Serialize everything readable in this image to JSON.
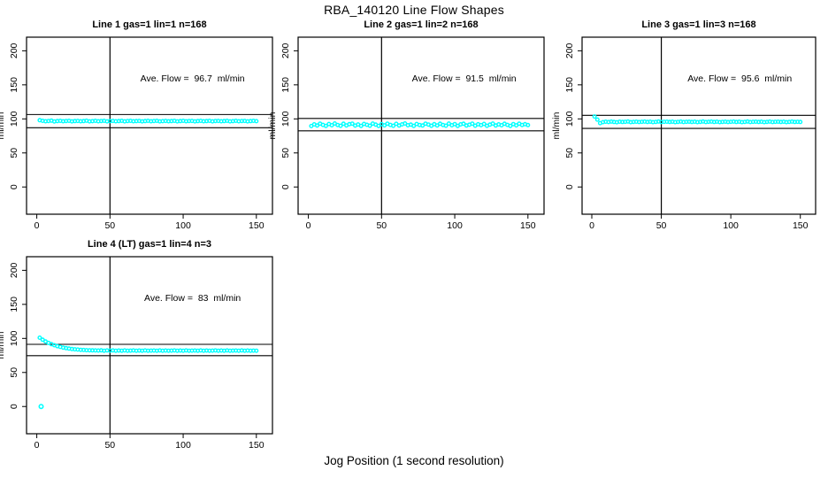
{
  "chart_data": {
    "type": "scatter",
    "title": "RBA_140120  Line Flow Shapes",
    "xlabel": "Jog Position (1 second resolution)",
    "ylabel": "ml/min",
    "xlim": [
      -7,
      161
    ],
    "ylim": [
      -40,
      220
    ],
    "x_ticks": [
      0,
      50,
      100,
      150
    ],
    "y_ticks": [
      0,
      50,
      100,
      150,
      200
    ],
    "grid": false,
    "legend": "none",
    "point_color": "#00FFFF",
    "line_color": "#000000",
    "vline_x": 50,
    "panels": [
      {
        "title": "Line 1 gas=1 lin=1 n=168",
        "n": 168,
        "ave_flow_ml_min": 96.7,
        "ave_label": "Ave. Flow =  96.7  ml/min",
        "ref_lines_y": [
          87.0,
          106.4
        ],
        "series": {
          "x0": 2,
          "dx": 2,
          "y": [
            98.0,
            97.2,
            96.5,
            96.9,
            97.4,
            96.3,
            96.8,
            97.1,
            96.5,
            96.9,
            97.2,
            96.4,
            96.7,
            97.0,
            96.5,
            96.8,
            97.3,
            96.4,
            96.6,
            97.1,
            96.5,
            96.9,
            97.2,
            96.4,
            96.8,
            97.0,
            96.5,
            96.7,
            97.2,
            96.4,
            96.9,
            97.1,
            96.5,
            96.8,
            97.0,
            96.4,
            96.7,
            97.2,
            96.5,
            96.9,
            97.1,
            96.4,
            96.6,
            97.0,
            96.5,
            96.8,
            97.2,
            96.4,
            96.7,
            97.1,
            96.5,
            96.9,
            97.0,
            96.4,
            96.8,
            97.2,
            96.5,
            96.7,
            97.1,
            96.4,
            96.9,
            97.0,
            96.5,
            96.8,
            97.2,
            96.4,
            96.6,
            97.1,
            96.5,
            96.9,
            97.0,
            96.4,
            96.8,
            97.1,
            96.6
          ]
        },
        "extra_points": []
      },
      {
        "title": "Line 2 gas=1 lin=2 n=168",
        "n": 168,
        "ave_flow_ml_min": 91.5,
        "ave_label": "Ave. Flow =  91.5  ml/min",
        "ref_lines_y": [
          82.4,
          100.7
        ],
        "series": {
          "x0": 2,
          "dx": 2,
          "y": [
            89.5,
            92.0,
            90.3,
            93.0,
            91.2,
            89.8,
            92.5,
            90.6,
            93.2,
            91.0,
            89.9,
            92.8,
            90.4,
            92.2,
            93.0,
            90.1,
            91.8,
            89.7,
            92.6,
            91.3,
            90.0,
            93.1,
            91.6,
            89.8,
            92.3,
            90.5,
            93.0,
            91.2,
            89.9,
            92.7,
            90.3,
            92.0,
            93.2,
            90.6,
            91.5,
            89.8,
            92.5,
            91.0,
            90.2,
            93.0,
            91.7,
            89.9,
            92.2,
            90.4,
            92.9,
            91.1,
            90.0,
            93.1,
            90.7,
            92.4,
            89.8,
            91.9,
            92.8,
            90.2,
            91.4,
            93.0,
            90.0,
            92.1,
            90.8,
            92.6,
            89.9,
            91.6,
            93.1,
            90.3,
            92.0,
            90.6,
            92.8,
            91.2,
            89.8,
            92.4,
            90.5,
            93.0,
            91.0,
            92.2,
            90.9
          ]
        },
        "extra_points": []
      },
      {
        "title": "Line 3 gas=1 lin=3 n=168",
        "n": 168,
        "ave_flow_ml_min": 95.6,
        "ave_label": "Ave. Flow =  95.6  ml/min",
        "ref_lines_y": [
          86.0,
          105.2
        ],
        "series": {
          "x0": 2,
          "dx": 2,
          "y": [
            103.5,
            99.0,
            93.8,
            95.2,
            95.8,
            95.3,
            96.0,
            95.5,
            95.1,
            95.9,
            95.4,
            95.7,
            96.1,
            95.2,
            95.6,
            95.9,
            95.3,
            95.7,
            96.0,
            95.4,
            95.8,
            95.2,
            95.6,
            96.1,
            95.3,
            95.7,
            95.9,
            95.4,
            95.8,
            95.2,
            95.6,
            96.0,
            95.3,
            95.7,
            95.9,
            95.4,
            95.8,
            95.2,
            95.6,
            96.1,
            95.3,
            95.7,
            96.0,
            95.4,
            95.8,
            95.2,
            95.6,
            95.9,
            95.3,
            95.7,
            96.0,
            95.4,
            95.8,
            95.2,
            95.6,
            96.1,
            95.3,
            95.7,
            95.9,
            95.4,
            95.8,
            95.2,
            95.6,
            96.0,
            95.3,
            95.7,
            95.9,
            95.4,
            95.8,
            95.2,
            95.6,
            96.0,
            95.4,
            95.7,
            95.5
          ]
        },
        "extra_points": []
      },
      {
        "title": "Line 4 (LT) gas=1 lin=4 n=3",
        "n": 3,
        "ave_flow_ml_min": 83,
        "ave_label": "Ave. Flow =  83  ml/min",
        "ref_lines_y": [
          74.7,
          91.3
        ],
        "series": {
          "x0": 2,
          "dx": 2,
          "y": [
            101.0,
            98.0,
            95.5,
            93.4,
            91.5,
            90.0,
            88.6,
            87.5,
            86.5,
            85.7,
            85.0,
            84.4,
            84.0,
            83.6,
            83.2,
            83.0,
            82.7,
            82.6,
            82.4,
            82.3,
            82.2,
            82.4,
            82.0,
            82.3,
            82.1,
            82.3,
            81.9,
            82.2,
            82.0,
            82.3,
            81.9,
            82.1,
            82.3,
            81.9,
            82.2,
            82.0,
            82.3,
            81.9,
            82.1,
            82.2,
            81.9,
            82.3,
            82.0,
            82.2,
            81.9,
            82.1,
            82.3,
            81.9,
            82.2,
            82.0,
            82.3,
            81.9,
            82.1,
            82.2,
            81.9,
            82.3,
            82.0,
            82.2,
            81.9,
            82.1,
            82.3,
            81.9,
            82.2,
            82.0,
            82.3,
            81.9,
            82.1,
            82.2,
            81.9,
            82.3,
            82.0,
            82.2,
            81.9,
            82.1,
            82.0
          ]
        },
        "extra_points": [
          [
            3,
            0
          ]
        ]
      }
    ]
  }
}
